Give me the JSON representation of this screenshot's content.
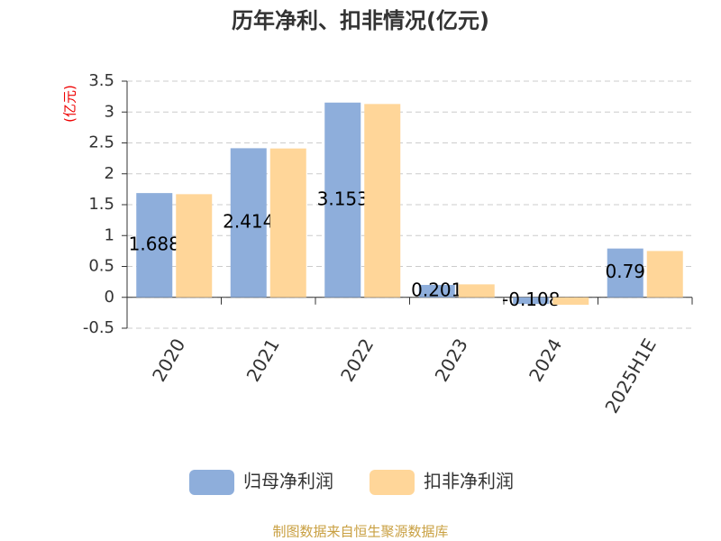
{
  "chart_data": {
    "type": "bar",
    "title": "历年净利、扣非情况(亿元)",
    "y_label": "(亿元)",
    "categories": [
      "2020",
      "2021",
      "2022",
      "2023",
      "2024",
      "2025H1E"
    ],
    "series": [
      {
        "name": "归母净利润",
        "color": "#8eaedb",
        "values": [
          1.688,
          2.414,
          3.153,
          0.201,
          -0.108,
          0.79
        ],
        "show_labels": true
      },
      {
        "name": "扣非净利润",
        "color": "#ffd699",
        "values": [
          1.67,
          2.41,
          3.13,
          0.21,
          -0.12,
          0.75
        ],
        "show_labels": false
      }
    ],
    "ylim": [
      -0.5,
      3.5
    ],
    "yticks": [
      -0.5,
      0,
      0.5,
      1,
      1.5,
      2,
      2.5,
      3,
      3.5
    ],
    "grid": true,
    "legend": "bottom",
    "source": "制图数据来自恒生聚源数据库"
  }
}
